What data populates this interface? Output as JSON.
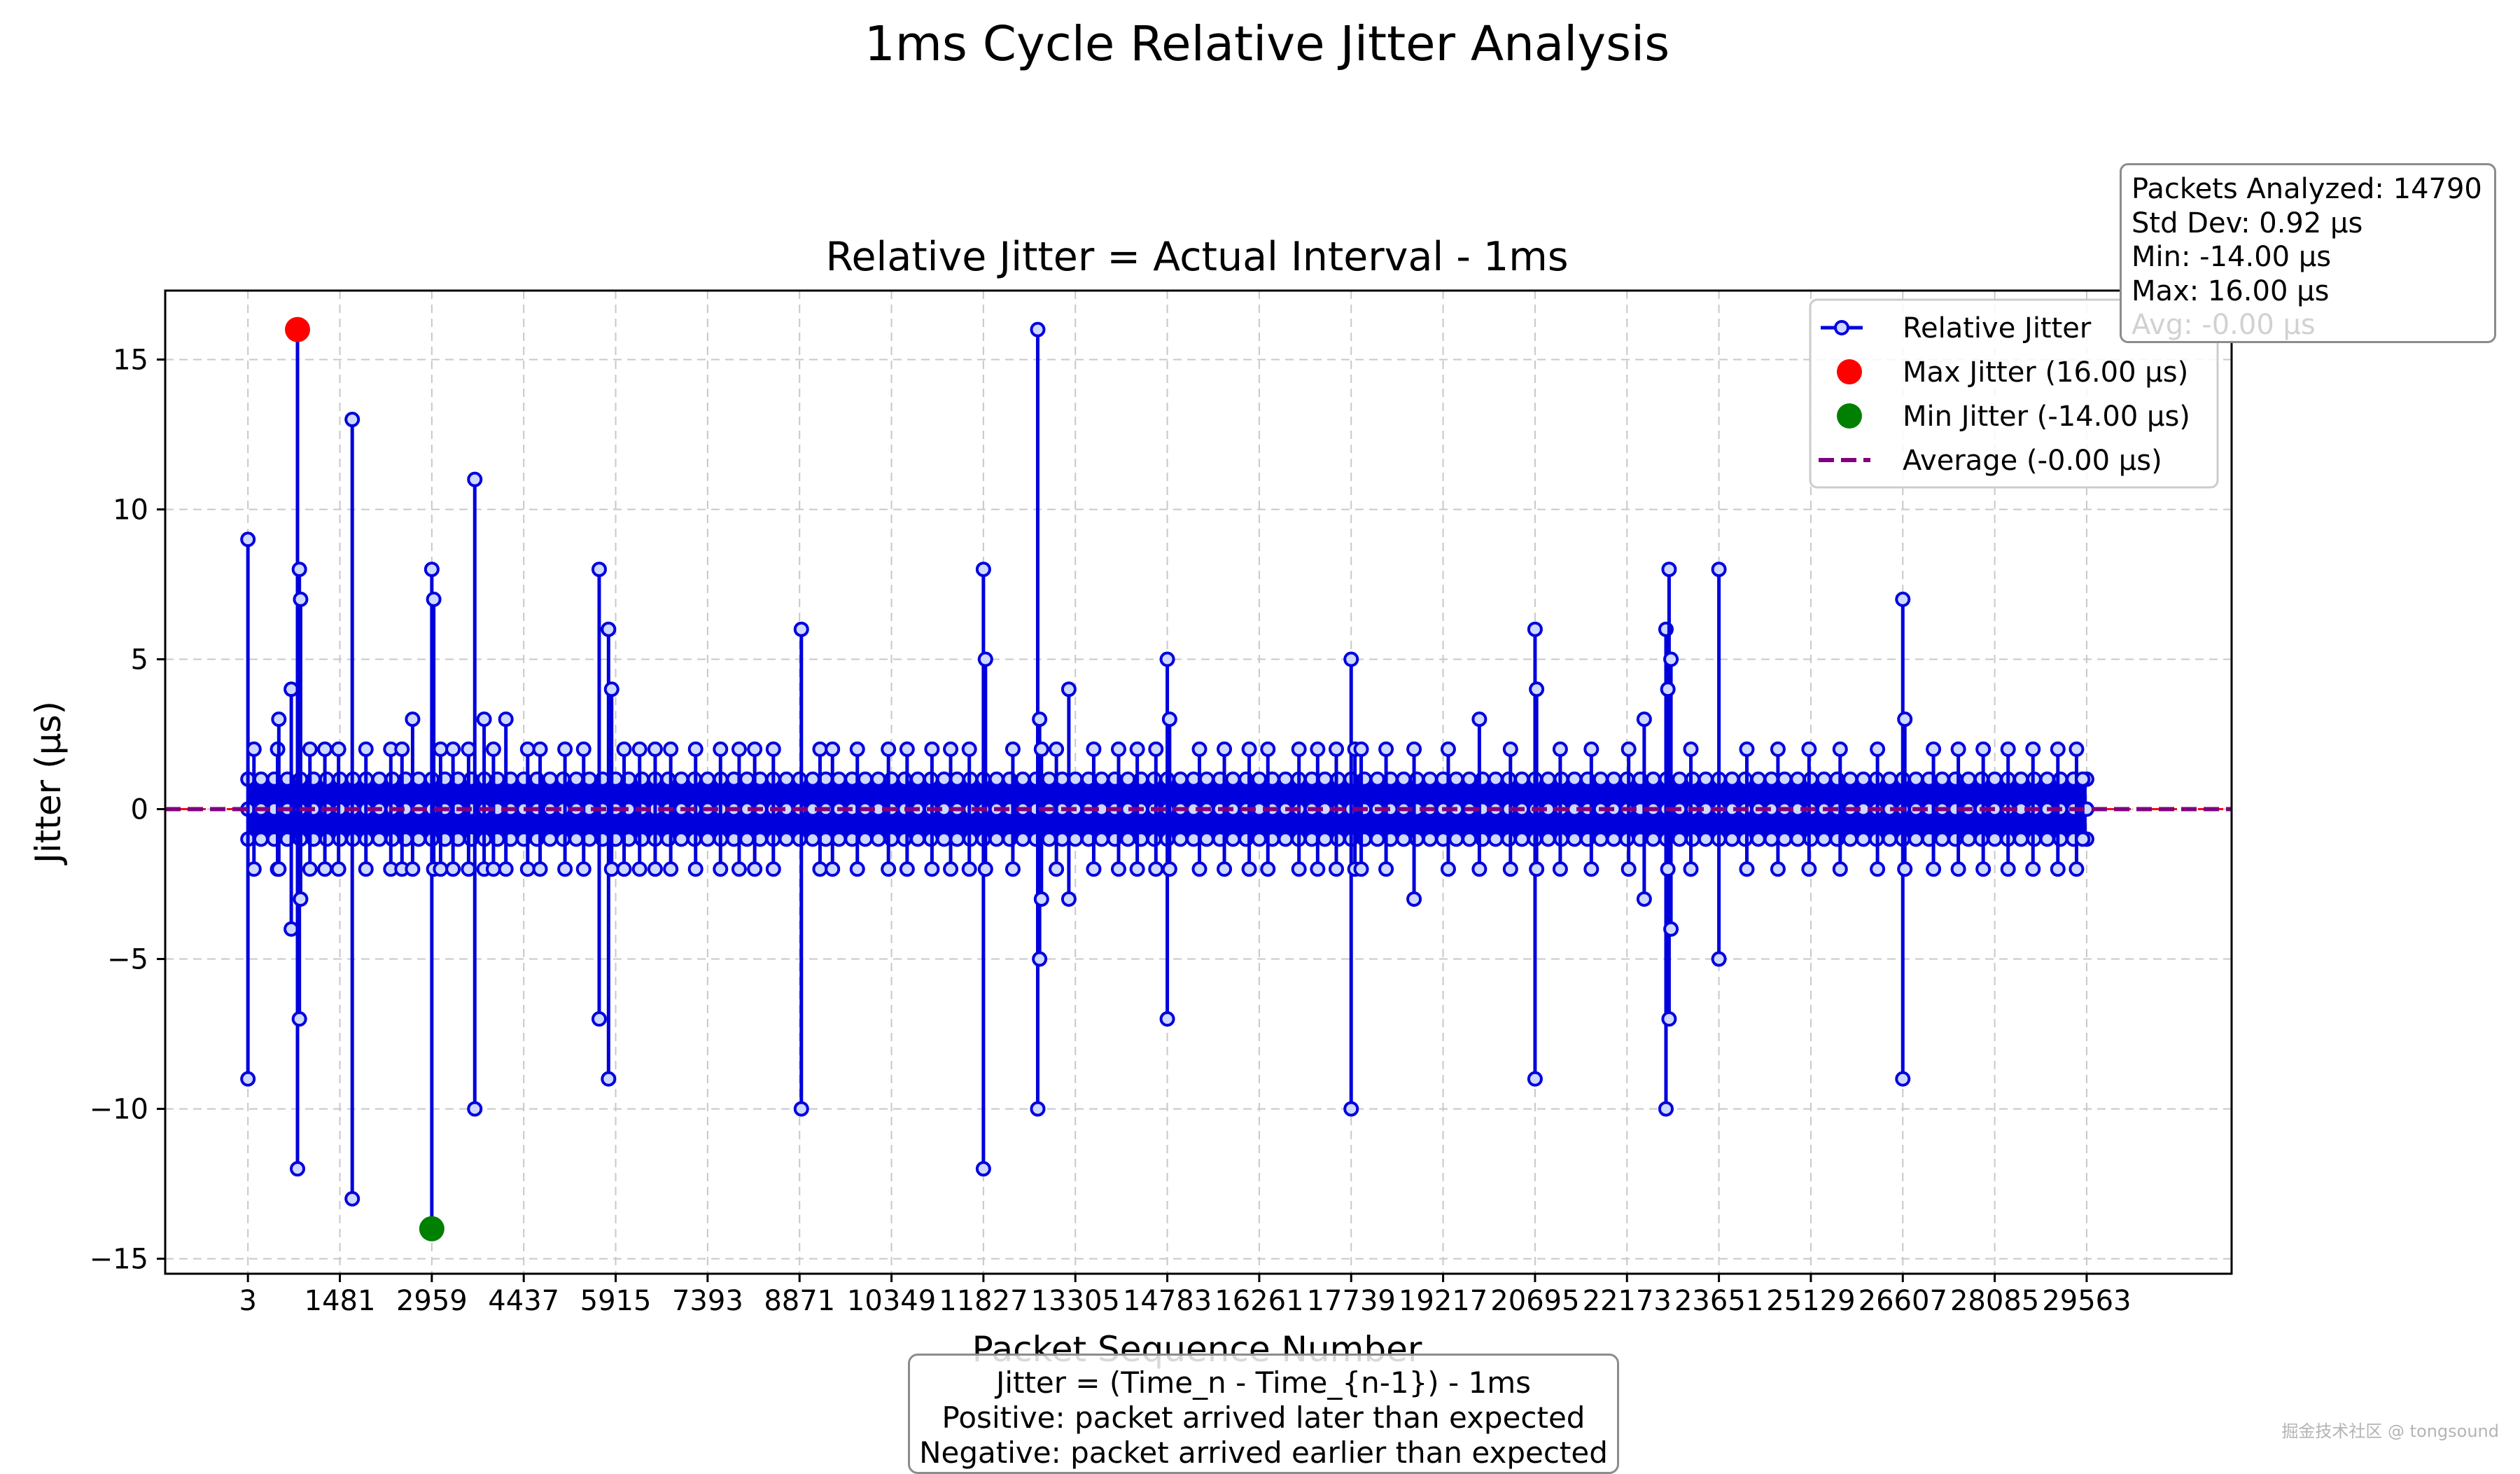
{
  "figure_title": "1ms Cycle Relative Jitter Analysis",
  "stats_box": {
    "lines": [
      "Packets Analyzed: 14790",
      "Std Dev: 0.92 μs",
      "Min: -14.00 μs",
      "Max: 16.00 μs",
      "Avg: -0.00 μs"
    ]
  },
  "note_box": {
    "lines": [
      "Jitter = (Time_n - Time_{n-1}) - 1ms",
      "Positive: packet arrived later than expected",
      "Negative: packet arrived earlier than expected"
    ]
  },
  "watermark": "掘金技术社区 @ tongsound",
  "colors": {
    "series": "#0000dd",
    "marker_face": "#cfd8ff",
    "max_marker": "#ff0000",
    "min_marker": "#008000",
    "average_line": "#800080",
    "reference_line": "#ff0000",
    "grid": "#c8c8c8"
  },
  "chart_data": {
    "type": "line",
    "title": "Relative Jitter = Actual Interval - 1ms",
    "xlabel": "Packet Sequence Number",
    "ylabel": "Jitter (μs)",
    "xlim": [
      -1327,
      31893
    ],
    "ylim": [
      -15.5,
      17.3
    ],
    "xticks": [
      3,
      1481,
      2959,
      4437,
      5915,
      7393,
      8871,
      10349,
      11827,
      13305,
      14783,
      16261,
      17739,
      19217,
      20695,
      22173,
      23651,
      25129,
      26607,
      28085,
      29563
    ],
    "yticks": [
      -15,
      -10,
      -5,
      0,
      5,
      10,
      15
    ],
    "ytick_labels": [
      "−15",
      "−10",
      "−5",
      "0",
      "5",
      "10",
      "15"
    ],
    "grid": true,
    "legend_position": "upper right",
    "legend": [
      {
        "label": "Relative Jitter",
        "kind": "line-marker"
      },
      {
        "label": "Max Jitter (16.00 μs)",
        "kind": "red-dot"
      },
      {
        "label": "Min Jitter (-14.00 μs)",
        "kind": "green-dot"
      },
      {
        "label": "Average (-0.00 μs)",
        "kind": "dashed"
      }
    ],
    "average": 0,
    "max_point": {
      "x": 800,
      "y": 16
    },
    "min_point": {
      "x": 2959,
      "y": -14
    },
    "x_range": [
      3,
      29563
    ],
    "baseline_band": [
      -1,
      1
    ],
    "series": [
      {
        "name": "Relative Jitter",
        "spikes": [
          {
            "x": 3,
            "lo": -9,
            "hi": 9
          },
          {
            "x": 100,
            "lo": -2,
            "hi": 2
          },
          {
            "x": 480,
            "lo": -2,
            "hi": 2
          },
          {
            "x": 500,
            "lo": -2,
            "hi": 3
          },
          {
            "x": 700,
            "lo": -4,
            "hi": 4
          },
          {
            "x": 800,
            "lo": -12,
            "hi": 16
          },
          {
            "x": 830,
            "lo": -7,
            "hi": 8
          },
          {
            "x": 850,
            "lo": -3,
            "hi": 7
          },
          {
            "x": 1000,
            "lo": -2,
            "hi": 2
          },
          {
            "x": 1240,
            "lo": -2,
            "hi": 2
          },
          {
            "x": 1460,
            "lo": -2,
            "hi": 2
          },
          {
            "x": 1680,
            "lo": -13,
            "hi": 13
          },
          {
            "x": 1900,
            "lo": -2,
            "hi": 2
          },
          {
            "x": 2300,
            "lo": -2,
            "hi": 2
          },
          {
            "x": 2480,
            "lo": -2,
            "hi": 2
          },
          {
            "x": 2650,
            "lo": -2,
            "hi": 3
          },
          {
            "x": 2959,
            "lo": -14,
            "hi": 8
          },
          {
            "x": 2990,
            "lo": -2,
            "hi": 7
          },
          {
            "x": 3100,
            "lo": -2,
            "hi": 2
          },
          {
            "x": 3300,
            "lo": -2,
            "hi": 2
          },
          {
            "x": 3550,
            "lo": -2,
            "hi": 2
          },
          {
            "x": 3650,
            "lo": -10,
            "hi": 11
          },
          {
            "x": 3800,
            "lo": -2,
            "hi": 3
          },
          {
            "x": 3950,
            "lo": -2,
            "hi": 2
          },
          {
            "x": 4150,
            "lo": -2,
            "hi": 3
          },
          {
            "x": 4500,
            "lo": -2,
            "hi": 2
          },
          {
            "x": 4700,
            "lo": -2,
            "hi": 2
          },
          {
            "x": 5100,
            "lo": -2,
            "hi": 2
          },
          {
            "x": 5400,
            "lo": -2,
            "hi": 2
          },
          {
            "x": 5650,
            "lo": -7,
            "hi": 8
          },
          {
            "x": 5800,
            "lo": -9,
            "hi": 6
          },
          {
            "x": 5850,
            "lo": -2,
            "hi": 4
          },
          {
            "x": 6050,
            "lo": -2,
            "hi": 2
          },
          {
            "x": 6300,
            "lo": -2,
            "hi": 2
          },
          {
            "x": 6550,
            "lo": -2,
            "hi": 2
          },
          {
            "x": 6800,
            "lo": -2,
            "hi": 2
          },
          {
            "x": 7200,
            "lo": -2,
            "hi": 2
          },
          {
            "x": 7600,
            "lo": -2,
            "hi": 2
          },
          {
            "x": 7900,
            "lo": -2,
            "hi": 2
          },
          {
            "x": 8150,
            "lo": -2,
            "hi": 2
          },
          {
            "x": 8450,
            "lo": -2,
            "hi": 2
          },
          {
            "x": 8900,
            "lo": -10,
            "hi": 6
          },
          {
            "x": 9200,
            "lo": -2,
            "hi": 2
          },
          {
            "x": 9400,
            "lo": -2,
            "hi": 2
          },
          {
            "x": 9800,
            "lo": -2,
            "hi": 2
          },
          {
            "x": 10300,
            "lo": -2,
            "hi": 2
          },
          {
            "x": 10600,
            "lo": -2,
            "hi": 2
          },
          {
            "x": 11000,
            "lo": -2,
            "hi": 2
          },
          {
            "x": 11300,
            "lo": -2,
            "hi": 2
          },
          {
            "x": 11600,
            "lo": -2,
            "hi": 2
          },
          {
            "x": 11827,
            "lo": -12,
            "hi": 8
          },
          {
            "x": 11860,
            "lo": -2,
            "hi": 5
          },
          {
            "x": 12300,
            "lo": -2,
            "hi": 2
          },
          {
            "x": 12700,
            "lo": -10,
            "hi": 16
          },
          {
            "x": 12730,
            "lo": -5,
            "hi": 3
          },
          {
            "x": 12760,
            "lo": -3,
            "hi": 2
          },
          {
            "x": 13000,
            "lo": -2,
            "hi": 2
          },
          {
            "x": 13200,
            "lo": -3,
            "hi": 4
          },
          {
            "x": 13600,
            "lo": -2,
            "hi": 2
          },
          {
            "x": 14000,
            "lo": -2,
            "hi": 2
          },
          {
            "x": 14300,
            "lo": -2,
            "hi": 2
          },
          {
            "x": 14600,
            "lo": -2,
            "hi": 2
          },
          {
            "x": 14783,
            "lo": -7,
            "hi": 5
          },
          {
            "x": 14820,
            "lo": -2,
            "hi": 3
          },
          {
            "x": 15300,
            "lo": -2,
            "hi": 2
          },
          {
            "x": 15700,
            "lo": -2,
            "hi": 2
          },
          {
            "x": 16100,
            "lo": -2,
            "hi": 2
          },
          {
            "x": 16400,
            "lo": -2,
            "hi": 2
          },
          {
            "x": 16900,
            "lo": -2,
            "hi": 2
          },
          {
            "x": 17200,
            "lo": -2,
            "hi": 2
          },
          {
            "x": 17500,
            "lo": -2,
            "hi": 2
          },
          {
            "x": 17739,
            "lo": -10,
            "hi": 5
          },
          {
            "x": 17800,
            "lo": -2,
            "hi": 2
          },
          {
            "x": 17900,
            "lo": -2,
            "hi": 2
          },
          {
            "x": 18300,
            "lo": -2,
            "hi": 2
          },
          {
            "x": 18750,
            "lo": -3,
            "hi": 2
          },
          {
            "x": 19300,
            "lo": -2,
            "hi": 2
          },
          {
            "x": 19800,
            "lo": -2,
            "hi": 3
          },
          {
            "x": 20300,
            "lo": -2,
            "hi": 2
          },
          {
            "x": 20695,
            "lo": -9,
            "hi": 6
          },
          {
            "x": 20720,
            "lo": -2,
            "hi": 4
          },
          {
            "x": 21100,
            "lo": -2,
            "hi": 2
          },
          {
            "x": 21600,
            "lo": -2,
            "hi": 2
          },
          {
            "x": 22200,
            "lo": -2,
            "hi": 2
          },
          {
            "x": 22450,
            "lo": -3,
            "hi": 3
          },
          {
            "x": 22800,
            "lo": -10,
            "hi": 6
          },
          {
            "x": 22850,
            "lo": -7,
            "hi": 8
          },
          {
            "x": 22880,
            "lo": -4,
            "hi": 5
          },
          {
            "x": 22830,
            "lo": -2,
            "hi": 4
          },
          {
            "x": 23200,
            "lo": -2,
            "hi": 2
          },
          {
            "x": 23651,
            "lo": -5,
            "hi": 8
          },
          {
            "x": 24100,
            "lo": -2,
            "hi": 2
          },
          {
            "x": 24600,
            "lo": -2,
            "hi": 2
          },
          {
            "x": 25100,
            "lo": -2,
            "hi": 2
          },
          {
            "x": 25600,
            "lo": -2,
            "hi": 2
          },
          {
            "x": 26200,
            "lo": -2,
            "hi": 2
          },
          {
            "x": 26607,
            "lo": -9,
            "hi": 7
          },
          {
            "x": 26640,
            "lo": -2,
            "hi": 3
          },
          {
            "x": 27100,
            "lo": -2,
            "hi": 2
          },
          {
            "x": 27500,
            "lo": -2,
            "hi": 2
          },
          {
            "x": 27900,
            "lo": -2,
            "hi": 2
          },
          {
            "x": 28300,
            "lo": -2,
            "hi": 2
          },
          {
            "x": 28700,
            "lo": -2,
            "hi": 2
          },
          {
            "x": 29100,
            "lo": -2,
            "hi": 2
          },
          {
            "x": 29400,
            "lo": -2,
            "hi": 2
          },
          {
            "x": 29500,
            "lo": -1,
            "hi": 1
          }
        ]
      }
    ]
  }
}
